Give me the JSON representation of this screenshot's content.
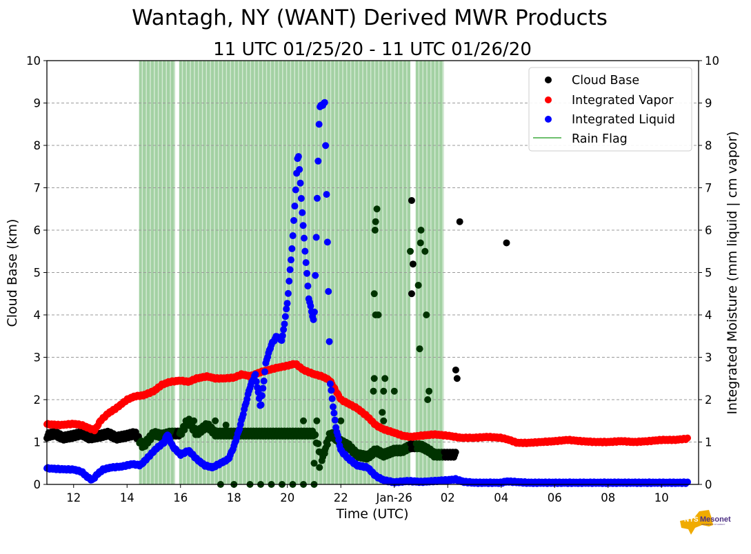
{
  "chart_data": {
    "type": "scatter",
    "title": "Wantagh, NY (WANT) Derived MWR Products",
    "subtitle": "11 UTC 01/25/20 - 11 UTC 01/26/20",
    "xlabel": "Time (UTC)",
    "ylabel_left": "Cloud Base (km)",
    "ylabel_right": "Integrated Moisture (mm liquid | cm vapor)",
    "xlim_hours_since_00utc_0125": [
      11,
      35
    ],
    "ylim": [
      0,
      10
    ],
    "y_ticks": [
      "0",
      "1",
      "2",
      "3",
      "4",
      "5",
      "6",
      "7",
      "8",
      "9",
      "10"
    ],
    "x_ticks": [
      {
        "hour": 12,
        "label": "12"
      },
      {
        "hour": 14,
        "label": "14"
      },
      {
        "hour": 16,
        "label": "16"
      },
      {
        "hour": 18,
        "label": "18"
      },
      {
        "hour": 20,
        "label": "20"
      },
      {
        "hour": 22,
        "label": "22"
      },
      {
        "hour": 24,
        "label": "Jan-26"
      },
      {
        "hour": 26,
        "label": "02"
      },
      {
        "hour": 28,
        "label": "04"
      },
      {
        "hour": 30,
        "label": "06"
      },
      {
        "hour": 32,
        "label": "08"
      },
      {
        "hour": 34,
        "label": "10"
      }
    ],
    "grid": "horizontal-dashed",
    "legend": {
      "position": "top-right",
      "entries": [
        {
          "label": "Cloud Base",
          "color": "#000000",
          "marker": "dot"
        },
        {
          "label": "Integrated Vapor",
          "color": "#ff0000",
          "marker": "dot"
        },
        {
          "label": "Integrated Liquid",
          "color": "#0000ff",
          "marker": "dot"
        },
        {
          "label": "Rain Flag",
          "color": "#6cbf6c",
          "marker": "line"
        }
      ]
    },
    "rain_flag_periods_hours": [
      [
        14.45,
        15.8
      ],
      [
        15.95,
        24.6
      ],
      [
        24.8,
        25.85
      ]
    ],
    "series": [
      {
        "name": "Integrated Vapor",
        "color": "#ff0000",
        "x": [
          11,
          11.5,
          12,
          12.3,
          12.6,
          12.8,
          13,
          13.3,
          13.6,
          14,
          14.3,
          14.6,
          15,
          15.3,
          15.6,
          16,
          16.3,
          16.6,
          17,
          17.3,
          17.6,
          18,
          18.3,
          18.6,
          19,
          19.3,
          19.6,
          20,
          20.3,
          20.6,
          21,
          21.3,
          21.6,
          22,
          22.3,
          22.6,
          23,
          23.3,
          23.6,
          24,
          24.3,
          24.6,
          25,
          25.5,
          26,
          26.5,
          27,
          27.5,
          28,
          28.3,
          28.6,
          29,
          29.5,
          30,
          30.5,
          31,
          31.5,
          32,
          32.5,
          33,
          33.5,
          34,
          34.5,
          35
        ],
        "y": [
          1.42,
          1.4,
          1.43,
          1.4,
          1.32,
          1.28,
          1.5,
          1.68,
          1.8,
          2.0,
          2.08,
          2.1,
          2.2,
          2.35,
          2.42,
          2.45,
          2.42,
          2.5,
          2.55,
          2.5,
          2.5,
          2.52,
          2.6,
          2.55,
          2.65,
          2.7,
          2.75,
          2.8,
          2.85,
          2.7,
          2.6,
          2.55,
          2.45,
          2.0,
          1.9,
          1.8,
          1.6,
          1.4,
          1.3,
          1.22,
          1.15,
          1.12,
          1.15,
          1.18,
          1.15,
          1.1,
          1.1,
          1.12,
          1.1,
          1.05,
          0.98,
          0.98,
          1.0,
          1.02,
          1.05,
          1.02,
          1.0,
          1.0,
          1.02,
          1.0,
          1.02,
          1.05,
          1.05,
          1.08
        ]
      },
      {
        "name": "Integrated Liquid",
        "color": "#0000ff",
        "x": [
          11,
          11.5,
          12,
          12.3,
          12.5,
          12.7,
          12.9,
          13.1,
          13.4,
          13.8,
          14.2,
          14.5,
          14.8,
          15.1,
          15.4,
          15.5,
          15.7,
          16,
          16.3,
          16.6,
          16.9,
          17.2,
          17.5,
          17.8,
          18,
          18.2,
          18.4,
          18.6,
          18.8,
          19.0,
          19.2,
          19.4,
          19.6,
          19.8,
          20.0,
          20.2,
          20.4,
          20.6,
          20.8,
          21.0,
          21.2,
          21.4,
          21.6,
          21.8,
          22,
          22.3,
          22.6,
          23,
          23.3,
          23.6,
          24,
          24.5,
          25,
          25.5,
          26,
          26.3,
          26.6,
          27,
          28,
          28.2,
          29,
          30,
          31,
          32,
          33,
          34,
          35
        ],
        "y": [
          0.38,
          0.36,
          0.35,
          0.3,
          0.18,
          0.1,
          0.25,
          0.35,
          0.4,
          0.42,
          0.48,
          0.45,
          0.65,
          0.85,
          1.0,
          1.2,
          0.9,
          0.7,
          0.8,
          0.6,
          0.45,
          0.4,
          0.5,
          0.6,
          0.9,
          1.3,
          1.8,
          2.3,
          2.6,
          1.8,
          2.9,
          3.3,
          3.5,
          3.4,
          4.3,
          5.8,
          7.9,
          6.0,
          4.4,
          3.8,
          8.9,
          9.0,
          2.4,
          1.4,
          0.8,
          0.6,
          0.45,
          0.4,
          0.2,
          0.1,
          0.05,
          0.08,
          0.06,
          0.08,
          0.1,
          0.12,
          0.06,
          0.04,
          0.04,
          0.07,
          0.04,
          0.04,
          0.04,
          0.04,
          0.04,
          0.04,
          0.04
        ]
      },
      {
        "name": "Cloud Base",
        "color": "#000000",
        "x": [
          11,
          11.3,
          11.6,
          12,
          12.3,
          12.6,
          13,
          13.3,
          13.6,
          14,
          14.3,
          14.6,
          15,
          15.3,
          15.6,
          16,
          16.3,
          16.6,
          17,
          17.3,
          17.6,
          18,
          18.3,
          18.6,
          19,
          19.3,
          19.6,
          20,
          20.3,
          20.6,
          21,
          21.3,
          21.6,
          22,
          22.3,
          22.6,
          23,
          23.3,
          23.6,
          24,
          24.3,
          24.6,
          25,
          25.3,
          25.5,
          25.8,
          26,
          26.3
        ],
        "y": [
          1.15,
          1.2,
          1.1,
          1.15,
          1.2,
          1.1,
          1.15,
          1.2,
          1.1,
          1.15,
          1.2,
          0.9,
          1.2,
          1.15,
          1.2,
          1.2,
          1.5,
          1.2,
          1.4,
          1.2,
          1.2,
          1.2,
          1.2,
          1.2,
          1.2,
          1.2,
          1.2,
          1.2,
          1.2,
          1.2,
          1.2,
          0.6,
          1.2,
          1.0,
          0.9,
          0.7,
          0.65,
          0.8,
          0.7,
          0.8,
          0.8,
          0.9,
          0.9,
          0.8,
          0.7,
          0.7,
          0.7,
          0.7
        ],
        "outliers": [
          {
            "x": 23.35,
            "y": 6.5
          },
          {
            "x": 23.3,
            "y": 6.2
          },
          {
            "x": 23.28,
            "y": 6.0
          },
          {
            "x": 23.25,
            "y": 4.5
          },
          {
            "x": 23.3,
            "y": 4.0
          },
          {
            "x": 23.4,
            "y": 4.0
          },
          {
            "x": 23.25,
            "y": 2.5
          },
          {
            "x": 23.65,
            "y": 2.5
          },
          {
            "x": 23.22,
            "y": 2.2
          },
          {
            "x": 23.6,
            "y": 2.2
          },
          {
            "x": 24.0,
            "y": 2.2
          },
          {
            "x": 23.55,
            "y": 1.7
          },
          {
            "x": 23.6,
            "y": 1.5
          },
          {
            "x": 24.65,
            "y": 6.7
          },
          {
            "x": 24.6,
            "y": 5.5
          },
          {
            "x": 24.7,
            "y": 5.2
          },
          {
            "x": 24.65,
            "y": 4.5
          },
          {
            "x": 24.9,
            "y": 4.7
          },
          {
            "x": 25.0,
            "y": 6.0
          },
          {
            "x": 24.98,
            "y": 5.7
          },
          {
            "x": 25.15,
            "y": 5.5
          },
          {
            "x": 25.2,
            "y": 4.0
          },
          {
            "x": 24.95,
            "y": 3.2
          },
          {
            "x": 25.3,
            "y": 2.2
          },
          {
            "x": 25.25,
            "y": 2.0
          },
          {
            "x": 26.3,
            "y": 2.7
          },
          {
            "x": 26.35,
            "y": 2.5
          },
          {
            "x": 26.45,
            "y": 6.2
          },
          {
            "x": 28.2,
            "y": 5.7
          },
          {
            "x": 17.5,
            "y": 0.0
          },
          {
            "x": 18.0,
            "y": 0.0
          },
          {
            "x": 18.6,
            "y": 0.0
          },
          {
            "x": 19.0,
            "y": 0.0
          },
          {
            "x": 19.4,
            "y": 0.0
          },
          {
            "x": 19.8,
            "y": 0.0
          },
          {
            "x": 20.2,
            "y": 0.0
          },
          {
            "x": 20.6,
            "y": 0.0
          },
          {
            "x": 21.0,
            "y": 0.0
          },
          {
            "x": 21.0,
            "y": 0.5
          },
          {
            "x": 21.2,
            "y": 0.4
          },
          {
            "x": 21.4,
            "y": 0.8
          },
          {
            "x": 20.6,
            "y": 1.5
          },
          {
            "x": 21.1,
            "y": 1.5
          },
          {
            "x": 22.0,
            "y": 1.5
          },
          {
            "x": 16.2,
            "y": 1.5
          },
          {
            "x": 16.5,
            "y": 1.5
          },
          {
            "x": 17.3,
            "y": 1.5
          },
          {
            "x": 17.7,
            "y": 1.4
          }
        ]
      }
    ]
  },
  "logo": {
    "text_main": "NYS",
    "text_brand": "Mesonet",
    "text_sub": "UNIVERSITY AT ALBANY"
  }
}
